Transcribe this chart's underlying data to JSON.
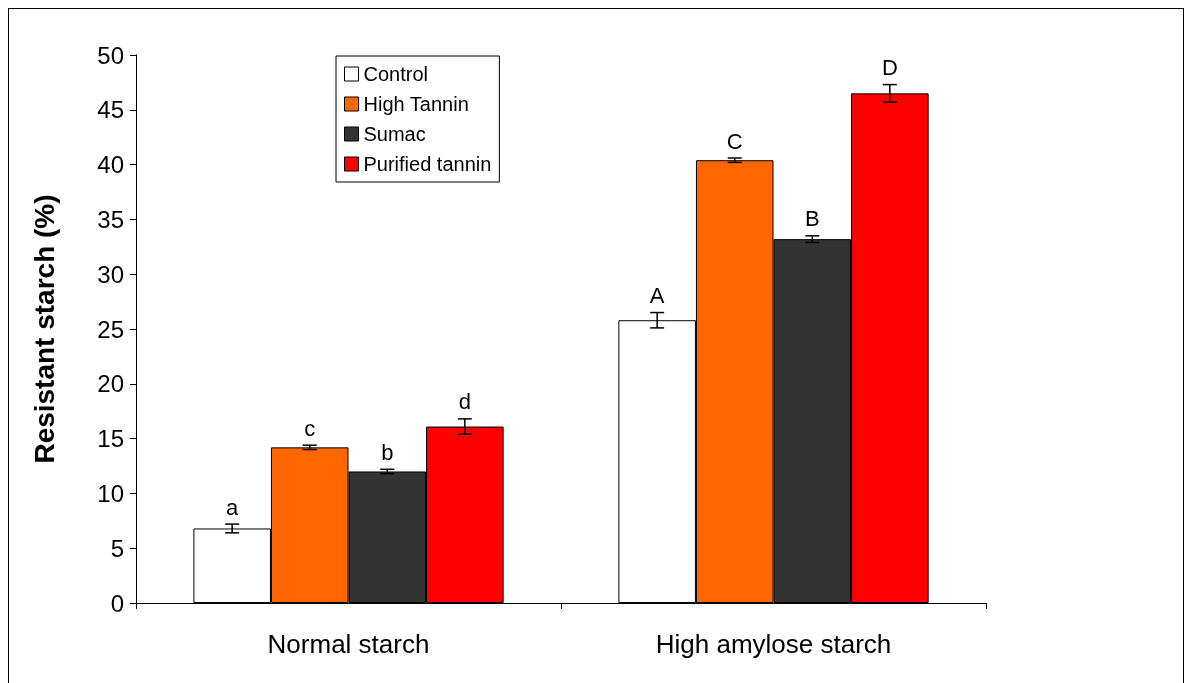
{
  "chart_data": {
    "type": "bar",
    "ylabel": "Resistant starch (%)",
    "categories": [
      "Normal starch",
      "High amylose starch"
    ],
    "series": [
      {
        "name": "Control",
        "color": "#ffffff",
        "values": [
          6.8,
          25.8
        ],
        "errors": [
          0.4,
          0.7
        ],
        "value_labels": [
          "a",
          "A"
        ]
      },
      {
        "name": "High Tannin",
        "color": "#ff6600",
        "values": [
          14.2,
          40.4
        ],
        "errors": [
          0.2,
          0.2
        ],
        "value_labels": [
          "c",
          "C"
        ]
      },
      {
        "name": "Sumac",
        "color": "#333333",
        "values": [
          12.0,
          33.2
        ],
        "errors": [
          0.2,
          0.3
        ],
        "value_labels": [
          "b",
          "B"
        ]
      },
      {
        "name": "Purified tannin",
        "color": "#ff0000",
        "values": [
          16.1,
          46.5
        ],
        "errors": [
          0.7,
          0.8
        ],
        "value_labels": [
          "d",
          "D"
        ]
      }
    ],
    "ylim": [
      0,
      50
    ],
    "yticks": [
      0,
      5,
      10,
      15,
      20,
      25,
      30,
      35,
      40,
      45,
      50
    ],
    "grid": false,
    "legend": "top left"
  }
}
